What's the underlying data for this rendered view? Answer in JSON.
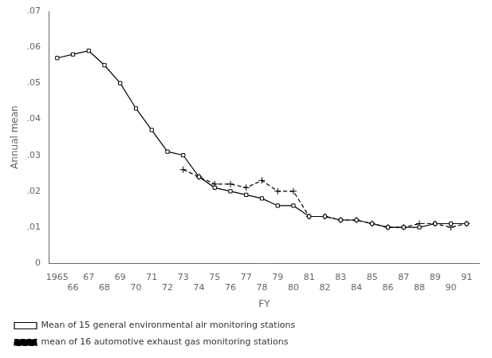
{
  "chart_data": {
    "type": "line",
    "xlabel": "FY",
    "ylabel": "Annual mean",
    "series": [
      {
        "name": "Mean of 15 general environmental air monitoring stations",
        "color": "black",
        "marker": "square",
        "line_style": "solid",
        "x": [
          1965,
          1966,
          1967,
          1968,
          1969,
          1970,
          1971,
          1972,
          1973,
          1974,
          1975,
          1976,
          1977,
          1978,
          1979,
          1980,
          1981,
          1982,
          1983,
          1984,
          1985,
          1986,
          1987,
          1988,
          1989,
          1990,
          1991
        ],
        "values": [
          0.057,
          0.058,
          0.059,
          0.055,
          0.05,
          0.043,
          0.037,
          0.031,
          0.03,
          0.024,
          0.021,
          0.02,
          0.019,
          0.018,
          0.016,
          0.016,
          0.013,
          0.013,
          0.012,
          0.012,
          0.011,
          0.01,
          0.01,
          0.01,
          0.011,
          0.011,
          0.011
        ]
      },
      {
        "name": "mean of 16 automotive exhaust gas monitoring stations",
        "color": "black",
        "marker": "plus",
        "line_style": "dashed",
        "x": [
          1973,
          1974,
          1975,
          1976,
          1977,
          1978,
          1979,
          1980,
          1981,
          1982,
          1983,
          1984,
          1985,
          1986,
          1987,
          1988,
          1989,
          1990,
          1991
        ],
        "values": [
          0.026,
          0.024,
          0.022,
          0.022,
          0.021,
          0.023,
          0.02,
          0.02,
          0.013,
          0.013,
          0.012,
          0.012,
          0.011,
          0.01,
          0.01,
          0.011,
          0.011,
          0.01,
          0.011
        ]
      }
    ],
    "xlim": [
      1964.5,
      1991.8
    ],
    "xticks": [
      1965,
      {
        "value": 1966,
        "label": "66"
      },
      {
        "value": 1967,
        "label": "67"
      },
      {
        "value": 1968,
        "label": "68"
      },
      {
        "value": 1969,
        "label": "69"
      },
      {
        "value": 1970,
        "label": "70"
      },
      {
        "value": 1971,
        "label": "71"
      },
      {
        "value": 1972,
        "label": "72"
      },
      {
        "value": 1973,
        "label": "73"
      },
      {
        "value": 1974,
        "label": "74"
      },
      {
        "value": 1975,
        "label": "75"
      },
      {
        "value": 1976,
        "label": "76"
      },
      {
        "value": 1977,
        "label": "77"
      },
      {
        "value": 1978,
        "label": "78"
      },
      {
        "value": 1979,
        "label": "79"
      },
      {
        "value": 1980,
        "label": "80"
      },
      {
        "value": 1981,
        "label": "81"
      },
      {
        "value": 1982,
        "label": "82"
      },
      {
        "value": 1983,
        "label": "83"
      },
      {
        "value": 1984,
        "label": "84"
      },
      {
        "value": 1985,
        "label": "85"
      },
      {
        "value": 1986,
        "label": "86"
      },
      {
        "value": 1987,
        "label": "87"
      },
      {
        "value": 1988,
        "label": "88"
      },
      {
        "value": 1989,
        "label": "89"
      },
      {
        "value": 1990,
        "label": "90"
      },
      {
        "value": 1991,
        "label": "91"
      }
    ],
    "ylim": [
      0,
      0.07
    ],
    "yticks": [
      0,
      {
        "value": 0.01,
        "label": ".01"
      },
      {
        "value": 0.02,
        "label": ".02"
      },
      {
        "value": 0.03,
        "label": ".03"
      },
      {
        "value": 0.04,
        "label": ".04"
      },
      {
        "value": 0.05,
        "label": ".05"
      },
      {
        "value": 0.06,
        "label": ".06"
      },
      {
        "value": 0.07,
        "label": ".07"
      }
    ],
    "grid": false,
    "legend": "lower left"
  }
}
